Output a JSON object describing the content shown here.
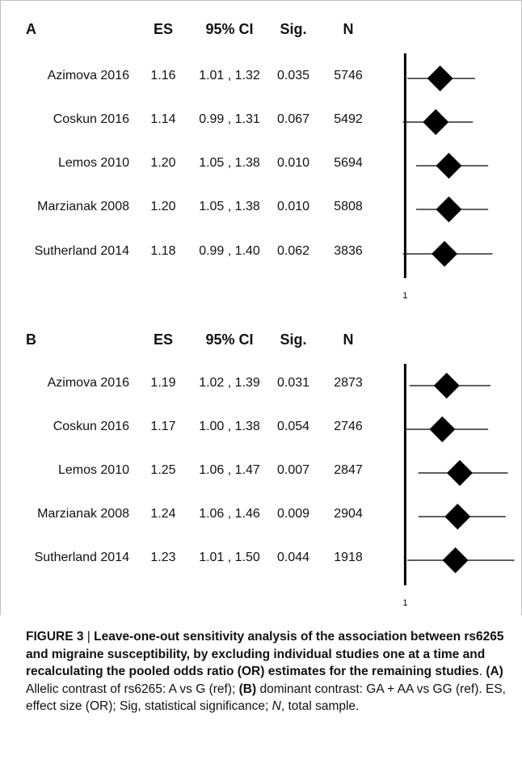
{
  "columns": {
    "es": "ES",
    "ci": "95% CI",
    "sig": "Sig.",
    "n": "N"
  },
  "panels": [
    {
      "label": "A",
      "ref_label": "1",
      "rows": [
        {
          "study": "Azimova 2016",
          "es": "1.16",
          "ci": "1.01 , 1.32",
          "sig": "0.035",
          "n": "5746"
        },
        {
          "study": "Coskun  2016",
          "es": "1.14",
          "ci": "0.99 , 1.31",
          "sig": "0.067",
          "n": "5492"
        },
        {
          "study": "Lemos 2010",
          "es": "1.20",
          "ci": "1.05 , 1.38",
          "sig": "0.010",
          "n": "5694"
        },
        {
          "study": "Marzianak 2008",
          "es": "1.20",
          "ci": "1.05 , 1.38",
          "sig": "0.010",
          "n": "5808"
        },
        {
          "study": "Sutherland 2014",
          "es": "1.18",
          "ci": "0.99 , 1.40",
          "sig": "0.062",
          "n": "3836"
        }
      ]
    },
    {
      "label": "B",
      "ref_label": "1",
      "rows": [
        {
          "study": "Azimova 2016",
          "es": "1.19",
          "ci": "1.02 , 1.39",
          "sig": "0.031",
          "n": "2873"
        },
        {
          "study": "Coskun  2016",
          "es": "1.17",
          "ci": "1.00 , 1.38",
          "sig": "0.054",
          "n": "2746"
        },
        {
          "study": "Lemos 2010",
          "es": "1.25",
          "ci": "1.06 , 1.47",
          "sig": "0.007",
          "n": "2847"
        },
        {
          "study": "Marzianak 2008",
          "es": "1.24",
          "ci": "1.06 , 1.46",
          "sig": "0.009",
          "n": "2904"
        },
        {
          "study": "Sutherland 2014",
          "es": "1.23",
          "ci": "1.01 , 1.50",
          "sig": "0.044",
          "n": "1918"
        }
      ]
    }
  ],
  "caption": {
    "figure_label": "FIGURE 3",
    "separator": " | ",
    "title": "Leave-one-out sensitivity analysis of the association between rs6265 and migraine susceptibility, by excluding individual studies one at a time and recalculating the pooled odds ratio (OR) estimates for the remaining studies",
    "after_title": ". ",
    "a_tag": "(A)",
    "a_text": " Allelic contrast of rs6265: A vs G (ref); ",
    "b_tag": "(B)",
    "b_text": " dominant contrast: GA + AA vs GG (ref). ES, effect size (OR); Sig, statistical significance; ",
    "n_italic": "N",
    "n_text": ", total sample."
  },
  "chart_data": [
    {
      "type": "forest",
      "panel": "A",
      "reference_line": 1,
      "categories": [
        "Azimova 2016",
        "Coskun  2016",
        "Lemos 2010",
        "Marzianak 2008",
        "Sutherland 2014"
      ],
      "es": [
        1.16,
        1.14,
        1.2,
        1.2,
        1.18
      ],
      "ci_low": [
        1.01,
        0.99,
        1.05,
        1.05,
        0.99
      ],
      "ci_high": [
        1.32,
        1.31,
        1.38,
        1.38,
        1.4
      ],
      "xlim": [
        0.98,
        1.52
      ]
    },
    {
      "type": "forest",
      "panel": "B",
      "reference_line": 1,
      "categories": [
        "Azimova 2016",
        "Coskun  2016",
        "Lemos 2010",
        "Marzianak 2008",
        "Sutherland 2014"
      ],
      "es": [
        1.19,
        1.17,
        1.25,
        1.24,
        1.23
      ],
      "ci_low": [
        1.02,
        1.0,
        1.06,
        1.06,
        1.01
      ],
      "ci_high": [
        1.39,
        1.38,
        1.47,
        1.46,
        1.5
      ],
      "xlim": [
        0.98,
        1.52
      ]
    }
  ]
}
